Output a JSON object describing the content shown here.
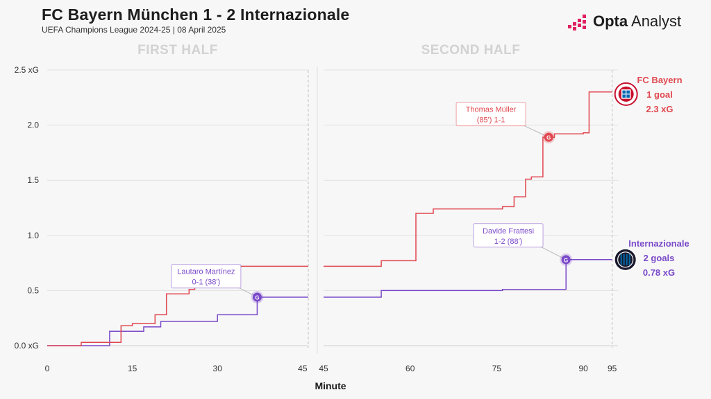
{
  "header": {
    "title": "FC Bayern München 1 - 2 Internazionale",
    "subtitle": "UEFA Champions League 2024-25 | 08 April 2025"
  },
  "brand": {
    "name_bold": "Opta",
    "name_rest": " Analyst"
  },
  "colors": {
    "bayern": "#e0474f",
    "inter": "#7a49c9",
    "grid": "#e1e1e1",
    "half_label": "#d2d2d2",
    "axis_text": "#333333"
  },
  "icons": {
    "brand": "opta-bars-icon",
    "bayern": "bayern-crest-icon",
    "inter": "inter-crest-icon"
  },
  "chart_data": {
    "type": "line",
    "title": "FC Bayern München 1 - 2 Internazionale",
    "xlabel": "Minute",
    "ylabel": "xG",
    "ylim": [
      0,
      2.5
    ],
    "y_ticks": [
      {
        "value": 0,
        "label": "0.0 xG"
      },
      {
        "value": 0.5,
        "label": "0.5"
      },
      {
        "value": 1,
        "label": "1.0"
      },
      {
        "value": 1.5,
        "label": "1.5"
      },
      {
        "value": 2,
        "label": "2.0"
      },
      {
        "value": 2.5,
        "label": "2.5 xG"
      }
    ],
    "halves": [
      {
        "label": "FIRST HALF",
        "xlim": [
          0,
          46
        ],
        "end_minute": 46,
        "x_ticks": [
          {
            "value": 0,
            "label": "0"
          },
          {
            "value": 15,
            "label": "15"
          },
          {
            "value": 30,
            "label": "30"
          },
          {
            "value": 45,
            "label": "45"
          }
        ]
      },
      {
        "label": "SECOND HALF",
        "xlim": [
          45,
          96
        ],
        "end_minute": 95,
        "x_ticks": [
          {
            "value": 45,
            "label": "45"
          },
          {
            "value": 60,
            "label": "60"
          },
          {
            "value": 75,
            "label": "75"
          },
          {
            "value": 90,
            "label": "90"
          },
          {
            "value": 95,
            "label": "95"
          }
        ]
      }
    ],
    "series": [
      {
        "name": "FC Bayern",
        "color": "#e0474f",
        "goals_label": "1 goal",
        "xg_label": "2.3 xG",
        "half1": [
          [
            0,
            0
          ],
          [
            6,
            0.03
          ],
          [
            13,
            0.18
          ],
          [
            15,
            0.2
          ],
          [
            19,
            0.28
          ],
          [
            21,
            0.47
          ],
          [
            25,
            0.51
          ],
          [
            26,
            0.72
          ],
          [
            46,
            0.72
          ]
        ],
        "half2": [
          [
            45,
            0.72
          ],
          [
            55,
            0.77
          ],
          [
            61,
            1.2
          ],
          [
            64,
            1.24
          ],
          [
            76,
            1.26
          ],
          [
            78,
            1.35
          ],
          [
            80,
            1.51
          ],
          [
            81,
            1.53
          ],
          [
            83,
            1.89
          ],
          [
            85,
            1.92
          ],
          [
            90,
            1.93
          ],
          [
            91,
            2.3
          ],
          [
            95,
            2.3
          ]
        ]
      },
      {
        "name": "Internazionale",
        "color": "#7a49c9",
        "goals_label": "2 goals",
        "xg_label": "0.78 xG",
        "half1": [
          [
            0,
            0
          ],
          [
            11,
            0.13
          ],
          [
            17,
            0.17
          ],
          [
            20,
            0.22
          ],
          [
            30,
            0.28
          ],
          [
            37,
            0.44
          ],
          [
            46,
            0.44
          ]
        ],
        "half2": [
          [
            45,
            0.44
          ],
          [
            55,
            0.5
          ],
          [
            76,
            0.51
          ],
          [
            87,
            0.78
          ],
          [
            95,
            0.78
          ]
        ]
      }
    ],
    "goals": [
      {
        "half": 1,
        "minute": 37,
        "xg": 0.44,
        "team": "Internazionale",
        "marker": "G",
        "player": "Lautaro Martínez",
        "detail": "0-1 (38')",
        "label_minute": 28,
        "label_xg": 0.63
      },
      {
        "half": 2,
        "minute": 84,
        "xg": 1.89,
        "team": "FC Bayern",
        "marker": "G",
        "player": "Thomas Müller",
        "detail": "(85') 1-1",
        "label_minute": 74,
        "label_xg": 2.1
      },
      {
        "half": 2,
        "minute": 87,
        "xg": 0.78,
        "team": "Internazionale",
        "marker": "G",
        "player": "Davide Frattesi",
        "detail": "1-2 (88')",
        "label_minute": 77,
        "label_xg": 1.0
      }
    ]
  }
}
